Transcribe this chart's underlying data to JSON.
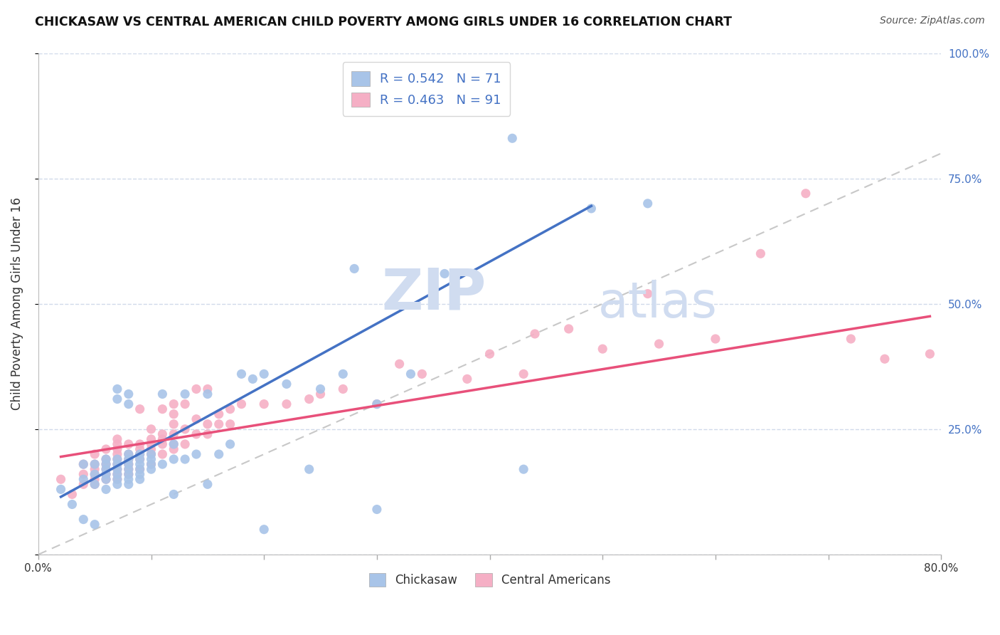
{
  "title": "CHICKASAW VS CENTRAL AMERICAN CHILD POVERTY AMONG GIRLS UNDER 16 CORRELATION CHART",
  "source": "Source: ZipAtlas.com",
  "ylabel": "Child Poverty Among Girls Under 16",
  "x_min": 0.0,
  "x_max": 0.8,
  "y_min": 0.0,
  "y_max": 1.0,
  "x_ticks": [
    0.0,
    0.1,
    0.2,
    0.3,
    0.4,
    0.5,
    0.6,
    0.7,
    0.8
  ],
  "x_tick_labels": [
    "0.0%",
    "",
    "",
    "",
    "",
    "",
    "",
    "",
    "80.0%"
  ],
  "y_ticks": [
    0.0,
    0.25,
    0.5,
    0.75,
    1.0
  ],
  "y_tick_labels": [
    "",
    "25.0%",
    "50.0%",
    "75.0%",
    "100.0%"
  ],
  "chickasaw_R": 0.542,
  "chickasaw_N": 71,
  "central_R": 0.463,
  "central_N": 91,
  "chickasaw_color": "#a8c4e8",
  "central_color": "#f5afc5",
  "chickasaw_line_color": "#4472c4",
  "central_line_color": "#e8507a",
  "ref_line_color": "#c8c8c8",
  "right_tick_color": "#4472c4",
  "grid_color": "#d0daea",
  "background_color": "#ffffff",
  "watermark_zip": "ZIP",
  "watermark_atlas": "atlas",
  "watermark_color": "#d0dcf0",
  "chickasaw_x": [
    0.02,
    0.03,
    0.04,
    0.04,
    0.04,
    0.05,
    0.05,
    0.05,
    0.05,
    0.06,
    0.06,
    0.06,
    0.06,
    0.06,
    0.06,
    0.07,
    0.07,
    0.07,
    0.07,
    0.07,
    0.07,
    0.07,
    0.07,
    0.08,
    0.08,
    0.08,
    0.08,
    0.08,
    0.08,
    0.08,
    0.08,
    0.08,
    0.09,
    0.09,
    0.09,
    0.09,
    0.09,
    0.09,
    0.1,
    0.1,
    0.1,
    0.1,
    0.11,
    0.11,
    0.12,
    0.12,
    0.12,
    0.13,
    0.13,
    0.14,
    0.15,
    0.15,
    0.16,
    0.17,
    0.18,
    0.19,
    0.2,
    0.2,
    0.22,
    0.24,
    0.25,
    0.27,
    0.28,
    0.3,
    0.3,
    0.33,
    0.36,
    0.42,
    0.43,
    0.49,
    0.54
  ],
  "chickasaw_y": [
    0.13,
    0.1,
    0.07,
    0.15,
    0.18,
    0.06,
    0.14,
    0.16,
    0.18,
    0.13,
    0.15,
    0.16,
    0.17,
    0.18,
    0.19,
    0.14,
    0.15,
    0.16,
    0.17,
    0.18,
    0.19,
    0.31,
    0.33,
    0.14,
    0.15,
    0.16,
    0.17,
    0.18,
    0.19,
    0.2,
    0.3,
    0.32,
    0.15,
    0.16,
    0.17,
    0.18,
    0.19,
    0.2,
    0.17,
    0.18,
    0.19,
    0.2,
    0.18,
    0.32,
    0.12,
    0.19,
    0.22,
    0.19,
    0.32,
    0.2,
    0.14,
    0.32,
    0.2,
    0.22,
    0.36,
    0.35,
    0.05,
    0.36,
    0.34,
    0.17,
    0.33,
    0.36,
    0.57,
    0.09,
    0.3,
    0.36,
    0.56,
    0.83,
    0.17,
    0.69,
    0.7
  ],
  "central_x": [
    0.02,
    0.03,
    0.04,
    0.04,
    0.04,
    0.05,
    0.05,
    0.05,
    0.05,
    0.05,
    0.05,
    0.06,
    0.06,
    0.06,
    0.06,
    0.06,
    0.06,
    0.07,
    0.07,
    0.07,
    0.07,
    0.07,
    0.07,
    0.07,
    0.07,
    0.07,
    0.08,
    0.08,
    0.08,
    0.08,
    0.08,
    0.08,
    0.09,
    0.09,
    0.09,
    0.09,
    0.09,
    0.09,
    0.1,
    0.1,
    0.1,
    0.1,
    0.1,
    0.1,
    0.11,
    0.11,
    0.11,
    0.11,
    0.11,
    0.12,
    0.12,
    0.12,
    0.12,
    0.12,
    0.12,
    0.13,
    0.13,
    0.13,
    0.14,
    0.14,
    0.14,
    0.15,
    0.15,
    0.15,
    0.16,
    0.16,
    0.17,
    0.17,
    0.18,
    0.2,
    0.22,
    0.24,
    0.25,
    0.27,
    0.3,
    0.32,
    0.34,
    0.38,
    0.4,
    0.43,
    0.44,
    0.47,
    0.5,
    0.54,
    0.55,
    0.6,
    0.64,
    0.68,
    0.72,
    0.75,
    0.79
  ],
  "central_y": [
    0.15,
    0.12,
    0.14,
    0.16,
    0.18,
    0.14,
    0.15,
    0.16,
    0.17,
    0.18,
    0.2,
    0.15,
    0.16,
    0.17,
    0.18,
    0.19,
    0.21,
    0.15,
    0.16,
    0.17,
    0.18,
    0.19,
    0.2,
    0.21,
    0.22,
    0.23,
    0.16,
    0.17,
    0.18,
    0.19,
    0.2,
    0.22,
    0.17,
    0.19,
    0.2,
    0.21,
    0.22,
    0.29,
    0.18,
    0.2,
    0.21,
    0.22,
    0.23,
    0.25,
    0.2,
    0.22,
    0.23,
    0.24,
    0.29,
    0.21,
    0.22,
    0.24,
    0.26,
    0.28,
    0.3,
    0.22,
    0.25,
    0.3,
    0.24,
    0.27,
    0.33,
    0.24,
    0.26,
    0.33,
    0.26,
    0.28,
    0.26,
    0.29,
    0.3,
    0.3,
    0.3,
    0.31,
    0.32,
    0.33,
    0.3,
    0.38,
    0.36,
    0.35,
    0.4,
    0.36,
    0.44,
    0.45,
    0.41,
    0.52,
    0.42,
    0.43,
    0.6,
    0.72,
    0.43,
    0.39,
    0.4
  ],
  "chick_line_x0": 0.02,
  "chick_line_y0": 0.115,
  "chick_line_x1": 0.49,
  "chick_line_y1": 0.695,
  "cent_line_x0": 0.02,
  "cent_line_y0": 0.195,
  "cent_line_x1": 0.79,
  "cent_line_y1": 0.475
}
